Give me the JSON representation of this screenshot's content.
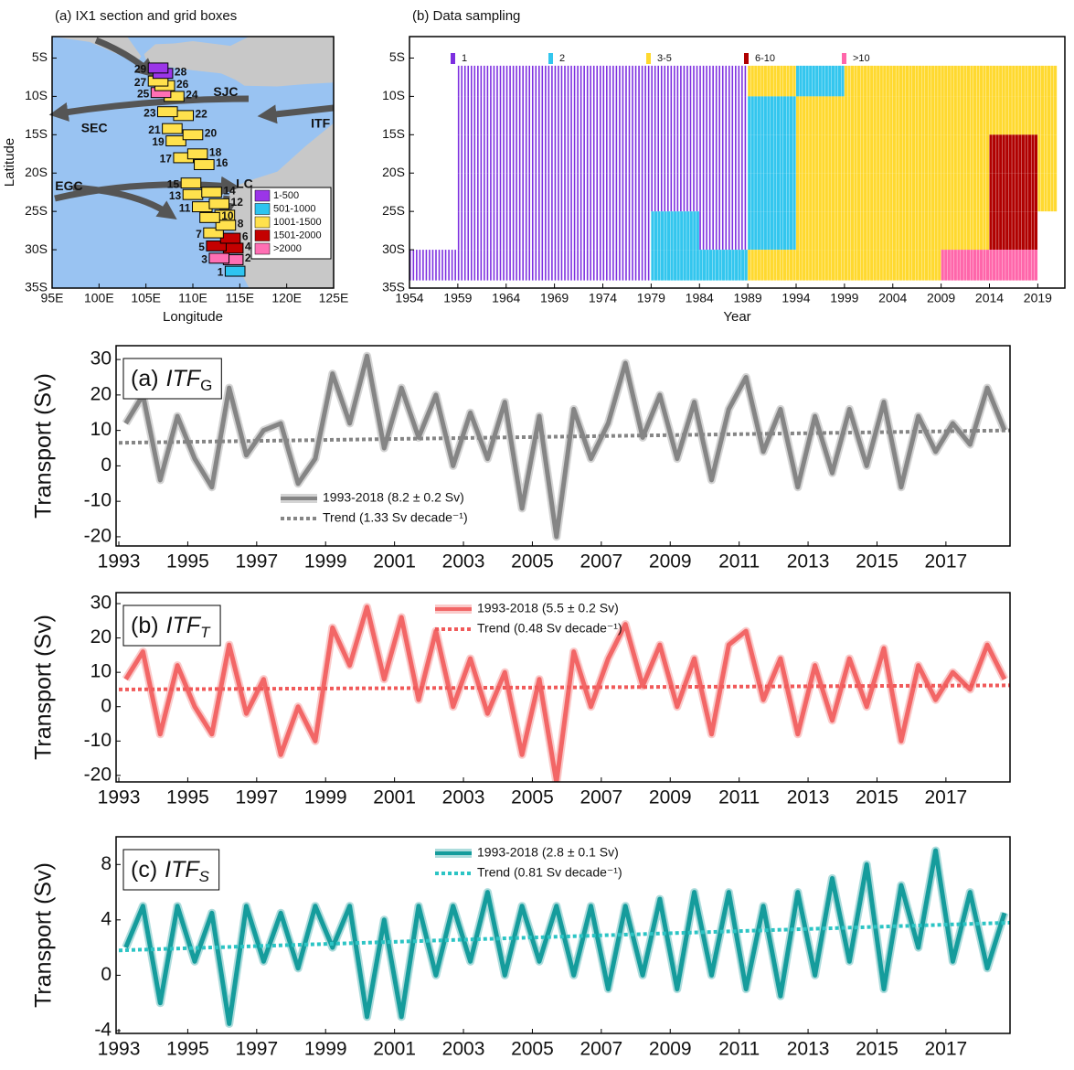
{
  "chart_data": [
    {
      "type": "map",
      "title": "(a) IX1 section and grid boxes",
      "xlabel": "Longitude",
      "ylabel": "Latitude",
      "xlim": [
        95,
        125
      ],
      "ylim": [
        -35,
        -2.2
      ],
      "xticks": [
        {
          "value": 95,
          "label": "95E"
        },
        {
          "value": 100,
          "label": "100E"
        },
        {
          "value": 105,
          "label": "105E"
        },
        {
          "value": 110,
          "label": "110E"
        },
        {
          "value": 115,
          "label": "115E"
        },
        {
          "value": 120,
          "label": "120E"
        },
        {
          "value": 125,
          "label": "125E"
        }
      ],
      "yticks": [
        {
          "value": -5,
          "label": "5S"
        },
        {
          "value": -10,
          "label": "10S"
        },
        {
          "value": -15,
          "label": "15S"
        },
        {
          "value": -20,
          "label": "20S"
        },
        {
          "value": -25,
          "label": "25S"
        },
        {
          "value": -30,
          "label": "30S"
        },
        {
          "value": -35,
          "label": "35S"
        }
      ],
      "ocean_color": "#99c3f2",
      "land_color": "#c8c8c8",
      "classes": [
        {
          "name": "1-500",
          "color": "#9b35e8"
        },
        {
          "name": "501-1000",
          "color": "#2ec4f0"
        },
        {
          "name": "1001-1500",
          "color": "#ffe14d"
        },
        {
          "name": "1501-2000",
          "color": "#c40000"
        },
        {
          "name": ">2000",
          "color": "#ff6fb4"
        }
      ],
      "boxes": [
        {
          "label": "1",
          "lon": 114.5,
          "lat": -32.8,
          "class": 1
        },
        {
          "label": "2",
          "lon": 114.3,
          "lat": -31.3,
          "class": 4
        },
        {
          "label": "3",
          "lon": 112.8,
          "lat": -31.1,
          "class": 4
        },
        {
          "label": "4",
          "lon": 114.3,
          "lat": -29.8,
          "class": 3
        },
        {
          "label": "5",
          "lon": 112.5,
          "lat": -29.5,
          "class": 3
        },
        {
          "label": "6",
          "lon": 114.0,
          "lat": -28.5,
          "class": 3
        },
        {
          "label": "7",
          "lon": 112.2,
          "lat": -27.8,
          "class": 2
        },
        {
          "label": "8",
          "lon": 113.5,
          "lat": -26.8,
          "class": 2
        },
        {
          "label": "9",
          "lon": 113.4,
          "lat": -25.5,
          "class": 2
        },
        {
          "label": "10",
          "lon": 111.8,
          "lat": -25.8,
          "class": 2
        },
        {
          "label": "11",
          "lon": 111.0,
          "lat": -24.4,
          "class": 2
        },
        {
          "label": "12",
          "lon": 112.8,
          "lat": -24.0,
          "class": 2
        },
        {
          "label": "13",
          "lon": 110.0,
          "lat": -22.8,
          "class": 2
        },
        {
          "label": "14",
          "lon": 112.0,
          "lat": -22.5,
          "class": 2
        },
        {
          "label": "15",
          "lon": 109.8,
          "lat": -21.3,
          "class": 2
        },
        {
          "label": "16",
          "lon": 111.2,
          "lat": -18.9,
          "class": 2
        },
        {
          "label": "17",
          "lon": 109.0,
          "lat": -18.0,
          "class": 2
        },
        {
          "label": "18",
          "lon": 110.5,
          "lat": -17.5,
          "class": 2
        },
        {
          "label": "19",
          "lon": 108.2,
          "lat": -15.8,
          "class": 2
        },
        {
          "label": "20",
          "lon": 110.0,
          "lat": -15.0,
          "class": 2
        },
        {
          "label": "21",
          "lon": 107.8,
          "lat": -14.2,
          "class": 2
        },
        {
          "label": "22",
          "lon": 109.0,
          "lat": -12.5,
          "class": 2
        },
        {
          "label": "23",
          "lon": 107.3,
          "lat": -12.0,
          "class": 2
        },
        {
          "label": "24",
          "lon": 108.0,
          "lat": -10.0,
          "class": 2
        },
        {
          "label": "25",
          "lon": 106.6,
          "lat": -9.5,
          "class": 4
        },
        {
          "label": "26",
          "lon": 107.0,
          "lat": -8.6,
          "class": 2
        },
        {
          "label": "27",
          "lon": 106.3,
          "lat": -8.0,
          "class": 2
        },
        {
          "label": "28",
          "lon": 106.8,
          "lat": -7.0,
          "class": 0
        },
        {
          "label": "29",
          "lon": 106.3,
          "lat": -6.3,
          "class": 0
        }
      ],
      "currents": [
        {
          "label": "SJC",
          "lon": 113.5,
          "lat": -9.5
        },
        {
          "label": "SEC",
          "lon": 99.5,
          "lat": -14.2
        },
        {
          "label": "ITF",
          "lon": 123.6,
          "lat": -13.6
        },
        {
          "label": "EGC",
          "lon": 96.8,
          "lat": -21.8
        },
        {
          "label": "LC",
          "lon": 115.5,
          "lat": -21.5
        }
      ]
    },
    {
      "type": "sampling",
      "title": "(b) Data sampling",
      "xlabel": "Year",
      "xlim": [
        1954,
        2021.8
      ],
      "ylim": [
        -35,
        -2.2
      ],
      "xticks": [
        1954,
        1959,
        1964,
        1969,
        1974,
        1979,
        1984,
        1989,
        1994,
        1999,
        2004,
        2009,
        2014,
        2019
      ],
      "yticks": [
        {
          "value": -5,
          "label": "5S"
        },
        {
          "value": -10,
          "label": "10S"
        },
        {
          "value": -15,
          "label": "15S"
        },
        {
          "value": -20,
          "label": "20S"
        },
        {
          "value": -25,
          "label": "25S"
        },
        {
          "value": -30,
          "label": "30S"
        },
        {
          "value": -35,
          "label": "35S"
        }
      ],
      "classes": [
        {
          "name": "1",
          "color": "#7d2fe0"
        },
        {
          "name": "2",
          "color": "#33c6ee"
        },
        {
          "name": "3-5",
          "color": "#ffd92f"
        },
        {
          "name": "6-10",
          "color": "#b00000"
        },
        {
          "name": ">10",
          "color": "#ff66aa"
        }
      ],
      "year_bins": [
        1954,
        1959,
        1964,
        1969,
        1974,
        1979,
        1984,
        1989,
        1994,
        1999,
        2004,
        2009,
        2014,
        2019,
        2021
      ],
      "lat_bins": [
        -6,
        -10,
        -15,
        -20,
        -25,
        -30,
        -34
      ],
      "cells": [
        [
          null,
          1,
          1,
          1,
          1,
          1,
          1,
          3,
          2,
          3,
          3,
          3,
          3,
          3
        ],
        [
          null,
          1,
          1,
          1,
          1,
          1,
          1,
          2,
          3,
          3,
          3,
          3,
          3,
          3
        ],
        [
          null,
          1,
          1,
          1,
          1,
          1,
          1,
          2,
          3,
          3,
          3,
          3,
          4,
          3
        ],
        [
          null,
          1,
          1,
          1,
          1,
          1,
          1,
          2,
          3,
          3,
          3,
          3,
          4,
          3
        ],
        [
          null,
          1,
          1,
          1,
          1,
          2,
          1,
          2,
          3,
          3,
          3,
          3,
          4,
          null
        ],
        [
          1,
          1,
          1,
          1,
          1,
          2,
          2,
          3,
          3,
          3,
          3,
          5,
          5,
          null
        ]
      ]
    },
    {
      "type": "line",
      "title": "(a)",
      "title_italic": "ITF",
      "title_sub": "G",
      "ylabel": "Transport (Sv)",
      "xlim": [
        1992.92,
        2018.86
      ],
      "ylim": [
        -22.6,
        33.9
      ],
      "legend": "lower left",
      "xticks": [
        1993,
        1995,
        1997,
        1999,
        2001,
        2003,
        2005,
        2007,
        2009,
        2011,
        2013,
        2015,
        2017
      ],
      "yticks": [
        30,
        20,
        10,
        0,
        -10,
        -20
      ],
      "x": [
        1993.2,
        1993.7,
        1994.2,
        1994.7,
        1995.2,
        1995.7,
        1996.2,
        1996.7,
        1997.2,
        1997.7,
        1998.2,
        1998.7,
        1999.2,
        1999.7,
        2000.2,
        2000.7,
        2001.2,
        2001.7,
        2002.2,
        2002.7,
        2003.2,
        2003.7,
        2004.2,
        2004.7,
        2005.2,
        2005.7,
        2006.2,
        2006.7,
        2007.2,
        2007.7,
        2008.2,
        2008.7,
        2009.2,
        2009.7,
        2010.2,
        2010.7,
        2011.2,
        2011.7,
        2012.2,
        2012.7,
        2013.2,
        2013.7,
        2014.2,
        2014.7,
        2015.2,
        2015.7,
        2016.2,
        2016.7,
        2017.2,
        2017.7,
        2018.2,
        2018.7
      ],
      "series": [
        {
          "name": "1993-2018 (8.2 ± 0.2 Sv)",
          "color": "#858585",
          "values": [
            12,
            20,
            -4,
            14,
            2,
            -6,
            22,
            3,
            10,
            12,
            -5,
            2,
            26,
            12,
            31,
            5,
            22,
            8,
            20,
            0,
            15,
            2,
            18,
            -12,
            14,
            -20,
            16,
            2,
            12,
            29,
            8,
            20,
            2,
            18,
            -4,
            16,
            25,
            4,
            16,
            -6,
            14,
            -2,
            16,
            0,
            18,
            -6,
            14,
            4,
            12,
            6,
            22,
            10
          ]
        },
        {
          "name": "Trend (1.33 Sv decade⁻¹)",
          "color": "#858585",
          "dash": true,
          "x": [
            1993,
            2018.86
          ],
          "values": [
            6.5,
            10
          ]
        }
      ]
    },
    {
      "type": "line",
      "title": "(b)",
      "title_italic": "ITF",
      "title_sub": "T",
      "ylabel": "Transport (Sv)",
      "xlim": [
        1992.92,
        2018.86
      ],
      "ylim": [
        -21.9,
        33.2
      ],
      "legend": "upper center",
      "xticks": [
        1993,
        1995,
        1997,
        1999,
        2001,
        2003,
        2005,
        2007,
        2009,
        2011,
        2013,
        2015,
        2017
      ],
      "yticks": [
        30,
        20,
        10,
        0,
        -10,
        -20
      ],
      "x": [
        1993.2,
        1993.7,
        1994.2,
        1994.7,
        1995.2,
        1995.7,
        1996.2,
        1996.7,
        1997.2,
        1997.7,
        1998.2,
        1998.7,
        1999.2,
        1999.7,
        2000.2,
        2000.7,
        2001.2,
        2001.7,
        2002.2,
        2002.7,
        2003.2,
        2003.7,
        2004.2,
        2004.7,
        2005.2,
        2005.7,
        2006.2,
        2006.7,
        2007.2,
        2007.7,
        2008.2,
        2008.7,
        2009.2,
        2009.7,
        2010.2,
        2010.7,
        2011.2,
        2011.7,
        2012.2,
        2012.7,
        2013.2,
        2013.7,
        2014.2,
        2014.7,
        2015.2,
        2015.7,
        2016.2,
        2016.7,
        2017.2,
        2017.7,
        2018.2,
        2018.7
      ],
      "series": [
        {
          "name": "1993-2018 (5.5 ± 0.2 Sv)",
          "color": "#f26666",
          "values": [
            8,
            16,
            -8,
            12,
            0,
            -8,
            18,
            -2,
            8,
            -14,
            0,
            -10,
            23,
            12,
            29,
            8,
            26,
            2,
            22,
            0,
            14,
            -2,
            10,
            -14,
            8,
            -22,
            16,
            0,
            14,
            24,
            6,
            18,
            0,
            14,
            -8,
            18,
            22,
            2,
            14,
            -8,
            12,
            -4,
            14,
            0,
            17,
            -10,
            12,
            2,
            10,
            5,
            18,
            8
          ]
        },
        {
          "name": "Trend (0.48 Sv decade⁻¹)",
          "color": "#f05a5a",
          "dash": true,
          "x": [
            1993,
            2018.86
          ],
          "values": [
            5,
            6.2
          ]
        }
      ]
    },
    {
      "type": "line",
      "title": "(c)",
      "title_italic": "ITF",
      "title_sub": "S",
      "ylabel": "Transport (Sv)",
      "xlim": [
        1992.92,
        2018.86
      ],
      "ylim": [
        -4.2,
        10
      ],
      "legend": "upper center",
      "xticks": [
        1993,
        1995,
        1997,
        1999,
        2001,
        2003,
        2005,
        2007,
        2009,
        2011,
        2013,
        2015,
        2017
      ],
      "yticks": [
        8,
        4,
        0,
        -4
      ],
      "x": [
        1993.2,
        1993.7,
        1994.2,
        1994.7,
        1995.2,
        1995.7,
        1996.2,
        1996.7,
        1997.2,
        1997.7,
        1998.2,
        1998.7,
        1999.2,
        1999.7,
        2000.2,
        2000.7,
        2001.2,
        2001.7,
        2002.2,
        2002.7,
        2003.2,
        2003.7,
        2004.2,
        2004.7,
        2005.2,
        2005.7,
        2006.2,
        2006.7,
        2007.2,
        2007.7,
        2008.2,
        2008.7,
        2009.2,
        2009.7,
        2010.2,
        2010.7,
        2011.2,
        2011.7,
        2012.2,
        2012.7,
        2013.2,
        2013.7,
        2014.2,
        2014.7,
        2015.2,
        2015.7,
        2016.2,
        2016.7,
        2017.2,
        2017.7,
        2018.2,
        2018.7
      ],
      "series": [
        {
          "name": "1993-2018 (2.8 ± 0.1 Sv)",
          "color": "#159c9c",
          "values": [
            2,
            5,
            -2,
            5,
            1,
            4.5,
            -3.5,
            5,
            1,
            4.5,
            0.5,
            5,
            2,
            5,
            -3,
            4,
            -3,
            5,
            0,
            5,
            1,
            6,
            0,
            5,
            1,
            5,
            0,
            5,
            -1,
            5,
            0,
            5.5,
            -1,
            6,
            0,
            6,
            -1,
            5,
            -1.5,
            6,
            0,
            7,
            1,
            8,
            -1,
            6.5,
            2,
            9,
            1,
            6,
            0.5,
            4.5
          ]
        },
        {
          "name": "Trend (0.81 Sv decade⁻¹)",
          "color": "#2cc4c4",
          "dash": true,
          "x": [
            1993,
            2018.86
          ],
          "values": [
            1.8,
            3.8
          ]
        }
      ]
    }
  ]
}
